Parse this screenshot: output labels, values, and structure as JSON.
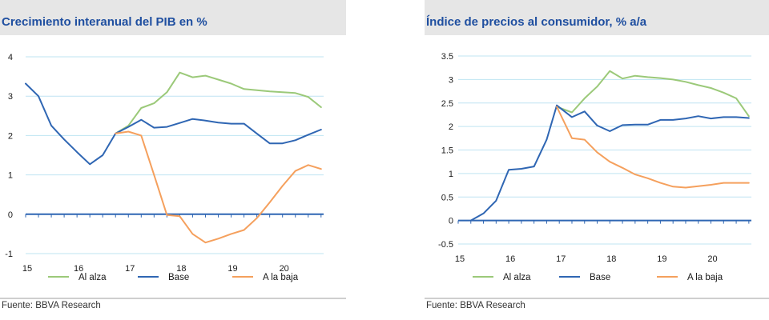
{
  "source_label": "Fuente: BBVA Research",
  "chart_data": [
    {
      "type": "line",
      "title": "Crecimiento interanual del PIB en %",
      "xlabel": "",
      "ylabel": "",
      "xlim": [
        15,
        20.8
      ],
      "ylim": [
        -1,
        4
      ],
      "yticks": [
        "-1",
        "0",
        "1",
        "2",
        "3",
        "4"
      ],
      "xticks": [
        "15",
        "16",
        "17",
        "18",
        "19",
        "20"
      ],
      "grid": true,
      "legend_position": "bottom",
      "series": [
        {
          "name": "Al alza",
          "color": "#9bc979",
          "x": [
            16.75,
            17.0,
            17.25,
            17.5,
            17.75,
            18.0,
            18.25,
            18.5,
            18.75,
            19.0,
            19.25,
            19.5,
            19.75,
            20.0,
            20.25,
            20.5,
            20.75
          ],
          "y": [
            2.05,
            2.25,
            2.7,
            2.82,
            3.1,
            3.6,
            3.48,
            3.52,
            3.42,
            3.32,
            3.18,
            3.15,
            3.12,
            3.1,
            3.08,
            2.98,
            2.72
          ]
        },
        {
          "name": "Base",
          "color": "#2f66b3",
          "x": [
            15.0,
            15.25,
            15.5,
            15.75,
            16.0,
            16.25,
            16.5,
            16.75,
            17.0,
            17.25,
            17.5,
            17.75,
            18.0,
            18.25,
            18.5,
            18.75,
            19.0,
            19.25,
            19.5,
            19.75,
            20.0,
            20.25,
            20.5,
            20.75
          ],
          "y": [
            3.32,
            3.0,
            2.25,
            1.9,
            1.58,
            1.27,
            1.5,
            2.05,
            2.22,
            2.4,
            2.2,
            2.22,
            2.32,
            2.42,
            2.38,
            2.33,
            2.3,
            2.3,
            2.05,
            1.8,
            1.8,
            1.88,
            2.02,
            2.15
          ]
        },
        {
          "name": "A la baja",
          "color": "#f5a05d",
          "x": [
            16.75,
            17.0,
            17.25,
            17.5,
            17.75,
            18.0,
            18.25,
            18.5,
            18.75,
            19.0,
            19.25,
            19.5,
            19.75,
            20.0,
            20.25,
            20.5,
            20.75
          ],
          "y": [
            2.05,
            2.1,
            2.0,
            1.0,
            -0.02,
            -0.05,
            -0.5,
            -0.72,
            -0.62,
            -0.5,
            -0.4,
            -0.1,
            0.3,
            0.72,
            1.1,
            1.25,
            1.15
          ]
        }
      ]
    },
    {
      "type": "line",
      "title": "Índice de precios al consumidor, % a/a",
      "xlabel": "",
      "ylabel": "",
      "xlim": [
        15,
        20.8
      ],
      "ylim": [
        -0.5,
        3.5
      ],
      "yticks": [
        "-0.5",
        "0",
        "0.5",
        "1",
        "1.5",
        "2",
        "2.5",
        "3",
        "3.5"
      ],
      "xticks": [
        "15",
        "16",
        "17",
        "18",
        "19",
        "20"
      ],
      "grid": true,
      "legend_position": "bottom",
      "series": [
        {
          "name": "Al alza",
          "color": "#9bc979",
          "x": [
            16.95,
            17.25,
            17.5,
            17.75,
            18.0,
            18.25,
            18.5,
            18.75,
            19.0,
            19.25,
            19.5,
            19.75,
            20.0,
            20.25,
            20.5,
            20.75
          ],
          "y": [
            2.42,
            2.3,
            2.6,
            2.85,
            3.18,
            3.02,
            3.08,
            3.05,
            3.03,
            3.0,
            2.95,
            2.88,
            2.82,
            2.72,
            2.6,
            2.22
          ]
        },
        {
          "name": "Base",
          "color": "#2f66b3",
          "x": [
            15.25,
            15.5,
            15.75,
            16.0,
            16.25,
            16.5,
            16.75,
            16.95,
            17.25,
            17.5,
            17.75,
            18.0,
            18.25,
            18.5,
            18.75,
            19.0,
            19.25,
            19.5,
            19.75,
            20.0,
            20.25,
            20.5,
            20.75
          ],
          "y": [
            0.0,
            0.15,
            0.42,
            1.08,
            1.1,
            1.15,
            1.72,
            2.45,
            2.2,
            2.32,
            2.02,
            1.9,
            2.03,
            2.04,
            2.04,
            2.14,
            2.14,
            2.17,
            2.22,
            2.17,
            2.2,
            2.2,
            2.18
          ]
        },
        {
          "name": "A la baja",
          "color": "#f5a05d",
          "x": [
            16.95,
            17.25,
            17.5,
            17.75,
            18.0,
            18.25,
            18.5,
            18.75,
            19.0,
            19.25,
            19.5,
            19.75,
            20.0,
            20.25,
            20.5,
            20.75
          ],
          "y": [
            2.42,
            1.75,
            1.72,
            1.45,
            1.25,
            1.12,
            0.98,
            0.9,
            0.8,
            0.72,
            0.7,
            0.73,
            0.76,
            0.8,
            0.8,
            0.8
          ]
        }
      ]
    }
  ]
}
